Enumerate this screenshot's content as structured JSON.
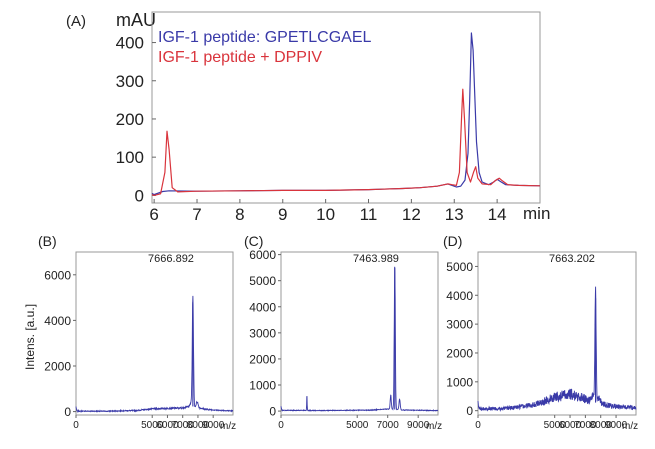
{
  "panels": {
    "A": {
      "label": "(A)",
      "chart_data": {
        "type": "line",
        "ylabel": "mAU",
        "xlabel_unit": "min",
        "xlim": [
          5.95,
          15.0
        ],
        "ylim": [
          -20,
          480
        ],
        "xticks": [
          6,
          7,
          8,
          9,
          10,
          11,
          12,
          13,
          14
        ],
        "yticks": [
          0,
          100,
          200,
          300,
          400
        ],
        "legend_position": "top-left",
        "series": [
          {
            "name": "IGF-1 peptide: GPETLCGAEL",
            "color": "#3a3aa8",
            "points": [
              [
                5.95,
                5
              ],
              [
                6.0,
                2
              ],
              [
                6.2,
                10
              ],
              [
                6.35,
                12
              ],
              [
                7.0,
                11
              ],
              [
                8.0,
                12
              ],
              [
                9.0,
                13
              ],
              [
                10.0,
                13
              ],
              [
                11.0,
                15
              ],
              [
                11.8,
                18
              ],
              [
                12.2,
                20
              ],
              [
                12.6,
                24
              ],
              [
                12.85,
                30
              ],
              [
                12.95,
                26
              ],
              [
                13.05,
                22
              ],
              [
                13.15,
                24
              ],
              [
                13.25,
                40
              ],
              [
                13.32,
                110
              ],
              [
                13.36,
                250
              ],
              [
                13.4,
                425
              ],
              [
                13.44,
                380
              ],
              [
                13.48,
                260
              ],
              [
                13.52,
                140
              ],
              [
                13.58,
                60
              ],
              [
                13.65,
                35
              ],
              [
                13.8,
                28
              ],
              [
                13.92,
                35
              ],
              [
                14.0,
                42
              ],
              [
                14.08,
                36
              ],
              [
                14.2,
                28
              ],
              [
                14.5,
                26
              ],
              [
                15.0,
                25
              ]
            ]
          },
          {
            "name": "IGF-1 peptide + DPPIV",
            "color": "#d9343c",
            "points": [
              [
                5.95,
                2
              ],
              [
                6.0,
                0
              ],
              [
                6.15,
                4
              ],
              [
                6.25,
                60
              ],
              [
                6.3,
                168
              ],
              [
                6.35,
                120
              ],
              [
                6.42,
                20
              ],
              [
                6.55,
                9
              ],
              [
                7.0,
                11
              ],
              [
                8.0,
                12
              ],
              [
                9.0,
                13
              ],
              [
                10.0,
                13
              ],
              [
                11.0,
                15
              ],
              [
                11.8,
                18
              ],
              [
                12.2,
                20
              ],
              [
                12.6,
                24
              ],
              [
                12.85,
                30
              ],
              [
                12.95,
                28
              ],
              [
                13.05,
                26
              ],
              [
                13.12,
                60
              ],
              [
                13.17,
                200
              ],
              [
                13.2,
                278
              ],
              [
                13.24,
                200
              ],
              [
                13.3,
                60
              ],
              [
                13.38,
                35
              ],
              [
                13.45,
                60
              ],
              [
                13.5,
                75
              ],
              [
                13.55,
                45
              ],
              [
                13.65,
                30
              ],
              [
                13.85,
                28
              ],
              [
                13.95,
                38
              ],
              [
                14.05,
                45
              ],
              [
                14.12,
                38
              ],
              [
                14.25,
                28
              ],
              [
                14.5,
                26
              ],
              [
                15.0,
                25
              ]
            ]
          }
        ]
      }
    },
    "B": {
      "label": "(B)",
      "chart_data": {
        "type": "line",
        "ylabel": "Intens. [a.u.]",
        "xlabel_unit": "m/z",
        "peak_label": "7666.892",
        "xlim": [
          0,
          10300
        ],
        "ylim": [
          -150,
          7000
        ],
        "xticks": [
          0,
          5000,
          6000,
          7000,
          8000,
          9000
        ],
        "yticks": [
          0,
          2000,
          4000,
          6000
        ],
        "series": [
          {
            "name": "",
            "color": "#3a3aa8",
            "peaks": [
              [
                7666.9,
                4800,
                40
              ],
              [
                7950,
                250,
                60
              ],
              [
                7550,
                150,
                50
              ]
            ],
            "baseline": [
              [
                0,
                20
              ],
              [
                2000,
                15
              ],
              [
                4000,
                50
              ],
              [
                5000,
                120
              ],
              [
                6000,
                140
              ],
              [
                7000,
                160
              ],
              [
                7500,
                250
              ],
              [
                8500,
                100
              ],
              [
                9500,
                50
              ],
              [
                10300,
                30
              ]
            ],
            "noise": 40,
            "spike_at_zero": 200
          }
        ]
      }
    },
    "C": {
      "label": "(C)",
      "chart_data": {
        "type": "line",
        "ylabel": "",
        "xlabel_unit": "m/z",
        "peak_label": "7463.989",
        "xlim": [
          0,
          10300
        ],
        "ylim": [
          -150,
          6100
        ],
        "xticks": [
          0,
          5000,
          7000,
          9000
        ],
        "yticks": [
          0,
          1000,
          2000,
          3000,
          4000,
          5000,
          6000
        ],
        "series": [
          {
            "name": "",
            "color": "#3a3aa8",
            "peaks": [
              [
                7464.0,
                5500,
                35
              ],
              [
                1700,
                600,
                15
              ],
              [
                7200,
                550,
                35
              ],
              [
                7780,
                400,
                40
              ]
            ],
            "baseline": [
              [
                0,
                30
              ],
              [
                3000,
                20
              ],
              [
                6000,
                40
              ],
              [
                7000,
                80
              ],
              [
                8000,
                40
              ],
              [
                10300,
                20
              ]
            ],
            "noise": 25,
            "spike_at_zero": 150
          }
        ]
      }
    },
    "D": {
      "label": "(D)",
      "chart_data": {
        "type": "line",
        "ylabel": "",
        "xlabel_unit": "m/z",
        "peak_label": "7663.202",
        "xlim": [
          0,
          10300
        ],
        "ylim": [
          -150,
          5500
        ],
        "xticks": [
          0,
          5000,
          6000,
          7000,
          8000,
          9000
        ],
        "yticks": [
          0,
          1000,
          2000,
          3000,
          4000,
          5000
        ],
        "series": [
          {
            "name": "",
            "color": "#3a3aa8",
            "peaks": [
              [
                7663.2,
                3900,
                40
              ],
              [
                7500,
                250,
                80
              ],
              [
                7900,
                200,
                80
              ]
            ],
            "baseline": [
              [
                0,
                80
              ],
              [
                1500,
                60
              ],
              [
                3000,
                150
              ],
              [
                4000,
                250
              ],
              [
                5000,
                480
              ],
              [
                6000,
                560
              ],
              [
                6800,
                450
              ],
              [
                7500,
                300
              ],
              [
                8500,
                180
              ],
              [
                9500,
                120
              ],
              [
                10300,
                100
              ]
            ],
            "noise": 110,
            "spike_at_zero": 200
          }
        ]
      }
    }
  }
}
